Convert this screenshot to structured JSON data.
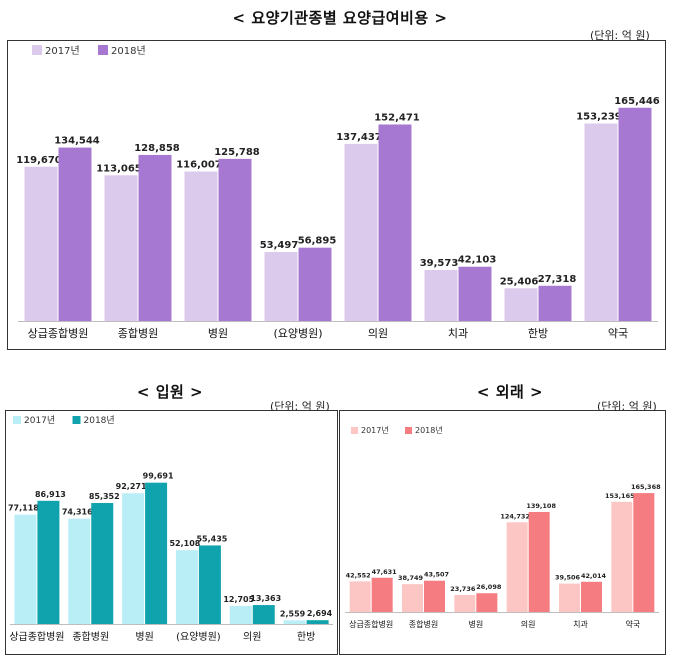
{
  "titles": {
    "main": "< 요양기관종별 요양급여비용 >",
    "inpatient": "< 입원 >",
    "outpatient": "< 외래 >"
  },
  "units": {
    "main": "(단위: 억 원)",
    "inpatient": "(단위: 억 원)",
    "outpatient": "(단위: 억 원)"
  },
  "chart_data": [
    {
      "id": "main",
      "type": "bar",
      "title": "요양기관종별 요양급여비용",
      "unit": "(단위: 억 원)",
      "categories": [
        "상급종합병원",
        "종합병원",
        "병원",
        "(요양병원)",
        "의원",
        "치과",
        "한방",
        "약국"
      ],
      "series": [
        {
          "name": "2017년",
          "color": "#dccaec",
          "labels": [
            "119,670",
            "113,065",
            "116,007",
            "53,497",
            "137,437",
            "39,573",
            "25,406",
            "153,239"
          ],
          "values": [
            119670,
            113065,
            116007,
            53497,
            137437,
            39573,
            25406,
            153239
          ]
        },
        {
          "name": "2018년",
          "color": "#a678d2",
          "labels": [
            "134,544",
            "128,858",
            "125,788",
            "56,895",
            "152,471",
            "42,103",
            "27,318",
            "165,446"
          ],
          "values": [
            134544,
            128858,
            125788,
            56895,
            152471,
            42103,
            27318,
            165446
          ]
        }
      ],
      "ylim": [
        0,
        180000
      ],
      "legend": "top-left",
      "grid": false
    },
    {
      "id": "inpatient",
      "type": "bar",
      "title": "입원",
      "unit": "(단위: 억 원)",
      "categories": [
        "상급종합병원",
        "종합병원",
        "병원",
        "(요양병원)",
        "의원",
        "한방"
      ],
      "series": [
        {
          "name": "2017년",
          "color": "#b9eef6",
          "labels": [
            "77,118",
            "74,316",
            "92,271",
            "52,108",
            "12,705",
            "2,559"
          ],
          "values": [
            77118,
            74316,
            92271,
            52108,
            12705,
            2559
          ]
        },
        {
          "name": "2018년",
          "color": "#11a3ad",
          "labels": [
            "86,913",
            "85,352",
            "99,691",
            "55,435",
            "13,363",
            "2,694"
          ],
          "values": [
            86913,
            85352,
            99691,
            55435,
            13363,
            2694
          ]
        }
      ],
      "ylim": [
        0,
        115000
      ],
      "legend": "top-left",
      "grid": false
    },
    {
      "id": "outpatient",
      "type": "bar",
      "title": "외래",
      "unit": "(단위: 억 원)",
      "categories": [
        "상급종합병원",
        "종합병원",
        "병원",
        "의원",
        "치과",
        "약국"
      ],
      "series": [
        {
          "name": "2017년",
          "color": "#fcc6c4",
          "labels": [
            "42,552",
            "38,749",
            "23,736",
            "124,732",
            "39,506",
            "153,165"
          ],
          "values": [
            42552,
            38749,
            23736,
            124732,
            39506,
            153165
          ]
        },
        {
          "name": "2018년",
          "color": "#f57c80",
          "labels": [
            "47,631",
            "43,507",
            "26,098",
            "139,108",
            "42,014",
            "165,368"
          ],
          "values": [
            47631,
            43507,
            26098,
            139108,
            42014,
            165368
          ]
        }
      ],
      "ylim": [
        0,
        210000
      ],
      "legend": "top-left",
      "grid": false
    }
  ]
}
